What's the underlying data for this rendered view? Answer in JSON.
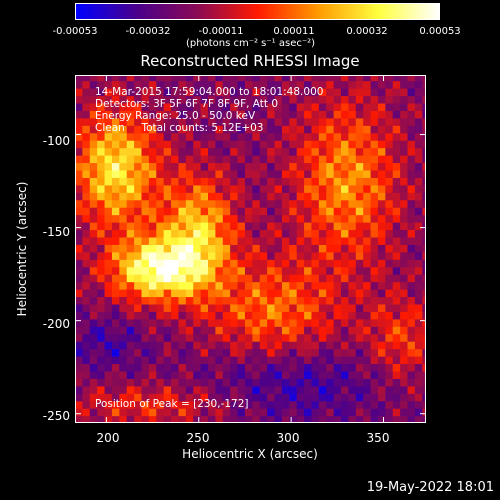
{
  "chart_data": {
    "type": "heatmap",
    "title": "Reconstructed RHESSI Image",
    "xlabel": "Heliocentric X (arcsec)",
    "ylabel": "Heliocentric Y (arcsec)",
    "xlim": [
      183,
      373
    ],
    "ylim": [
      -255,
      -68
    ],
    "x_ticks": [
      200,
      250,
      300,
      350
    ],
    "y_ticks": [
      -100,
      -150,
      -200,
      -250
    ],
    "colorbar": {
      "ticks": [
        "-0.00053",
        "-0.00032",
        "-0.00011",
        "0.00011",
        "0.00032",
        "0.00053"
      ],
      "range": [
        -0.00053,
        0.00053
      ],
      "units_text": "(photons cm⁻² s⁻¹ asec⁻²)",
      "colormap": [
        "#0000ff",
        "#4a008c",
        "#8a0a55",
        "#ff1a00",
        "#ff9a00",
        "#ffff40",
        "#ffffff"
      ]
    },
    "annotations": [
      "14-Mar-2015 17:59:04.000 to 18:01:48.000",
      "Detectors: 3F 5F 6F 7F 8F 9F, Att 0",
      "Energy Range: 25.0 - 50.0 keV",
      "Clean     Total counts: 5.12E+03",
      "Position of Peak = [230,-172]"
    ],
    "peak": [
      230,
      -172
    ]
  },
  "footer_date": "19-May-2022 18:01"
}
